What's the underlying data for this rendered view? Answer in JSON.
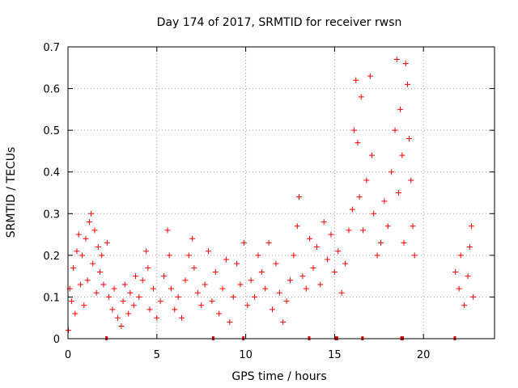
{
  "chart_data": {
    "type": "scatter",
    "title": "Day 174 of 2017, SRMTID for receiver rwsn",
    "xlabel": "GPS time / hours",
    "ylabel": "SRMTID / TECUs",
    "xlim": [
      0,
      24
    ],
    "ylim": [
      0,
      0.7
    ],
    "x_ticks": [
      0,
      5,
      10,
      15,
      20
    ],
    "x_tick_labels": [
      "0",
      "5",
      "10",
      "15",
      "20"
    ],
    "y_ticks": [
      0,
      0.1,
      0.2,
      0.3,
      0.4,
      0.5,
      0.6,
      0.7
    ],
    "y_tick_labels": [
      "0",
      "0.1",
      "0.2",
      "0.3",
      "0.4",
      "0.5",
      "0.6",
      "0.7"
    ],
    "grid": true,
    "marker": "plus",
    "color": "#ff0000",
    "series": [
      {
        "name": "SRMTID",
        "points": [
          [
            0.02,
            0.02
          ],
          [
            0.1,
            0.12
          ],
          [
            0.2,
            0.09
          ],
          [
            0.3,
            0.17
          ],
          [
            0.4,
            0.06
          ],
          [
            0.5,
            0.21
          ],
          [
            0.6,
            0.25
          ],
          [
            0.7,
            0.13
          ],
          [
            0.8,
            0.2
          ],
          [
            0.9,
            0.08
          ],
          [
            1.0,
            0.24
          ],
          [
            1.1,
            0.14
          ],
          [
            1.2,
            0.28
          ],
          [
            1.3,
            0.3
          ],
          [
            1.4,
            0.18
          ],
          [
            1.5,
            0.26
          ],
          [
            1.6,
            0.11
          ],
          [
            1.7,
            0.22
          ],
          [
            1.8,
            0.16
          ],
          [
            1.9,
            0.2
          ],
          [
            2.0,
            0.13
          ],
          [
            2.2,
            0.23
          ],
          [
            2.3,
            0.1
          ],
          [
            2.5,
            0.07
          ],
          [
            2.6,
            0.12
          ],
          [
            2.8,
            0.05
          ],
          [
            3.0,
            0.03
          ],
          [
            3.1,
            0.09
          ],
          [
            3.2,
            0.13
          ],
          [
            3.4,
            0.06
          ],
          [
            3.5,
            0.11
          ],
          [
            3.7,
            0.08
          ],
          [
            3.8,
            0.15
          ],
          [
            4.0,
            0.1
          ],
          [
            4.2,
            0.14
          ],
          [
            4.4,
            0.21
          ],
          [
            4.5,
            0.17
          ],
          [
            4.6,
            0.07
          ],
          [
            4.8,
            0.12
          ],
          [
            5.0,
            0.05
          ],
          [
            5.2,
            0.09
          ],
          [
            5.4,
            0.15
          ],
          [
            5.6,
            0.26
          ],
          [
            5.7,
            0.2
          ],
          [
            5.8,
            0.12
          ],
          [
            6.0,
            0.07
          ],
          [
            6.2,
            0.1
          ],
          [
            6.4,
            0.05
          ],
          [
            6.6,
            0.14
          ],
          [
            6.8,
            0.2
          ],
          [
            7.0,
            0.24
          ],
          [
            7.1,
            0.17
          ],
          [
            7.3,
            0.11
          ],
          [
            7.5,
            0.08
          ],
          [
            7.7,
            0.13
          ],
          [
            7.9,
            0.21
          ],
          [
            8.1,
            0.09
          ],
          [
            8.3,
            0.16
          ],
          [
            8.5,
            0.06
          ],
          [
            8.7,
            0.12
          ],
          [
            8.9,
            0.19
          ],
          [
            9.1,
            0.04
          ],
          [
            9.3,
            0.1
          ],
          [
            9.5,
            0.18
          ],
          [
            9.7,
            0.13
          ],
          [
            9.9,
            0.23
          ],
          [
            10.1,
            0.08
          ],
          [
            10.3,
            0.14
          ],
          [
            10.5,
            0.1
          ],
          [
            10.7,
            0.2
          ],
          [
            10.9,
            0.16
          ],
          [
            11.1,
            0.12
          ],
          [
            11.3,
            0.23
          ],
          [
            11.5,
            0.07
          ],
          [
            11.7,
            0.18
          ],
          [
            11.9,
            0.11
          ],
          [
            12.1,
            0.04
          ],
          [
            12.3,
            0.09
          ],
          [
            12.5,
            0.14
          ],
          [
            12.7,
            0.2
          ],
          [
            12.9,
            0.27
          ],
          [
            13.0,
            0.34
          ],
          [
            13.2,
            0.15
          ],
          [
            13.4,
            0.12
          ],
          [
            13.6,
            0.24
          ],
          [
            13.8,
            0.17
          ],
          [
            14.0,
            0.22
          ],
          [
            14.2,
            0.13
          ],
          [
            14.4,
            0.28
          ],
          [
            14.6,
            0.19
          ],
          [
            14.8,
            0.25
          ],
          [
            15.0,
            0.16
          ],
          [
            15.2,
            0.21
          ],
          [
            15.4,
            0.11
          ],
          [
            15.6,
            0.18
          ],
          [
            15.8,
            0.26
          ],
          [
            16.0,
            0.31
          ],
          [
            16.1,
            0.5
          ],
          [
            16.2,
            0.62
          ],
          [
            16.3,
            0.47
          ],
          [
            16.4,
            0.34
          ],
          [
            16.5,
            0.58
          ],
          [
            16.6,
            0.26
          ],
          [
            16.8,
            0.38
          ],
          [
            17.0,
            0.63
          ],
          [
            17.1,
            0.44
          ],
          [
            17.2,
            0.3
          ],
          [
            17.4,
            0.2
          ],
          [
            17.6,
            0.23
          ],
          [
            17.8,
            0.33
          ],
          [
            18.0,
            0.27
          ],
          [
            18.2,
            0.4
          ],
          [
            18.4,
            0.5
          ],
          [
            18.5,
            0.67
          ],
          [
            18.6,
            0.35
          ],
          [
            18.7,
            0.55
          ],
          [
            18.8,
            0.44
          ],
          [
            18.9,
            0.23
          ],
          [
            19.0,
            0.66
          ],
          [
            19.1,
            0.61
          ],
          [
            19.2,
            0.48
          ],
          [
            19.3,
            0.38
          ],
          [
            19.4,
            0.27
          ],
          [
            19.5,
            0.2
          ],
          [
            21.8,
            0.16
          ],
          [
            22.0,
            0.12
          ],
          [
            22.1,
            0.2
          ],
          [
            22.3,
            0.08
          ],
          [
            22.5,
            0.15
          ],
          [
            22.6,
            0.22
          ],
          [
            22.7,
            0.27
          ],
          [
            22.8,
            0.1
          ]
        ]
      }
    ],
    "data_gaps": [
      [
        2.1,
        2.15
      ],
      [
        8.1,
        8.15
      ],
      [
        9.8,
        9.85
      ],
      [
        13.5,
        13.55
      ],
      [
        15.0,
        15.2
      ],
      [
        16.5,
        16.55
      ],
      [
        18.7,
        18.9
      ],
      [
        21.7,
        21.75
      ]
    ]
  }
}
